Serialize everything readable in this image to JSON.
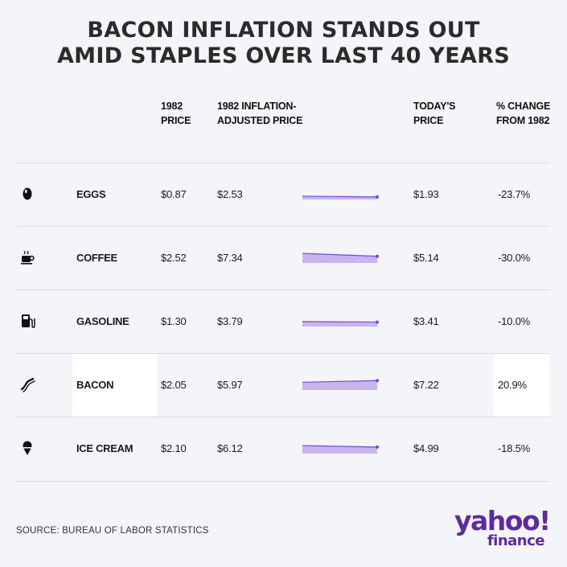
{
  "title_lines": [
    "BACON INFLATION STANDS OUT",
    "AMID STAPLES OVER LAST 40 YEARS"
  ],
  "headers": {
    "price_1982": "1982\nPRICE",
    "adjusted": "1982 INFLATION-\nADJUSTED PRICE",
    "today": "TODAY'S\nPRICE",
    "change": "% CHANGE\nFROM 1982"
  },
  "source": "SOURCE: BUREAU OF LABOR STATISTICS",
  "logo": {
    "yahoo": "yahoo!",
    "finance": "finance",
    "color": "#5d2b9d"
  },
  "colors": {
    "spark_fill": "#c9b4f0",
    "spark_line": "#7a45d6",
    "highlight": "#ffffff"
  },
  "chart_data": {
    "type": "table",
    "columns": [
      "1982 PRICE",
      "1982 INFLATION-ADJUSTED PRICE",
      "TODAY'S PRICE",
      "% CHANGE FROM 1982"
    ],
    "rows": [
      {
        "icon": "egg-icon",
        "name": "EGGS",
        "price_1982": "$0.87",
        "adjusted": "$2.53",
        "today": "$1.93",
        "change": "-23.7%",
        "adjusted_value": 2.53,
        "today_value": 1.93,
        "highlight": false
      },
      {
        "icon": "coffee-cup-icon",
        "name": "COFFEE",
        "price_1982": "$2.52",
        "adjusted": "$7.34",
        "today": "$5.14",
        "change": "-30.0%",
        "adjusted_value": 7.34,
        "today_value": 5.14,
        "highlight": false
      },
      {
        "icon": "gas-pump-icon",
        "name": "GASOLINE",
        "price_1982": "$1.30",
        "adjusted": "$3.79",
        "today": "$3.41",
        "change": "-10.0%",
        "adjusted_value": 3.79,
        "today_value": 3.41,
        "highlight": false
      },
      {
        "icon": "bacon-icon",
        "name": "BACON",
        "price_1982": "$2.05",
        "adjusted": "$5.97",
        "today": "$7.22",
        "change": "20.9%",
        "adjusted_value": 5.97,
        "today_value": 7.22,
        "highlight": true
      },
      {
        "icon": "ice-cream-icon",
        "name": "ICE CREAM",
        "price_1982": "$2.10",
        "adjusted": "$6.12",
        "today": "$4.99",
        "change": "-18.5%",
        "adjusted_value": 6.12,
        "today_value": 4.99,
        "highlight": false
      }
    ]
  }
}
